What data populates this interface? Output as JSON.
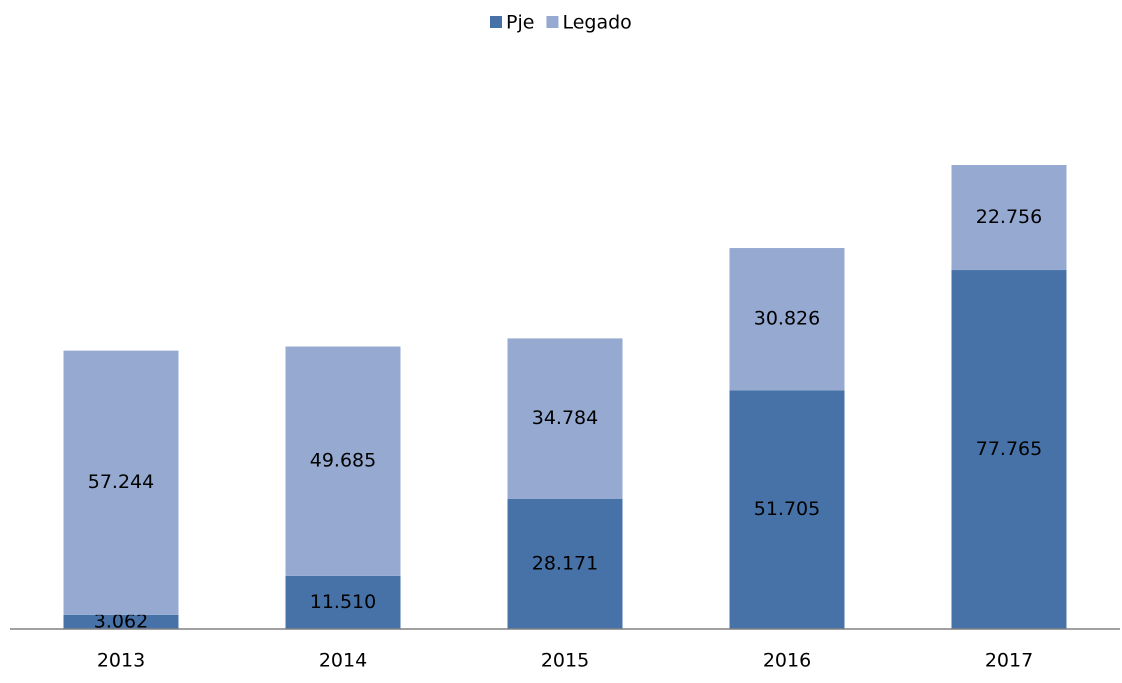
{
  "chart_data": {
    "type": "stacked_bar",
    "categories": [
      "2013",
      "2014",
      "2015",
      "2016",
      "2017"
    ],
    "series": [
      {
        "name": "Pje",
        "color": "#4672a8",
        "values": [
          3062,
          11510,
          28171,
          51705,
          77765
        ],
        "value_labels": [
          "3.062",
          "11.510",
          "28.171",
          "51.705",
          "77.765"
        ]
      },
      {
        "name": "Legado",
        "color": "#95a9d1",
        "values": [
          57244,
          49685,
          34784,
          30826,
          22756
        ],
        "value_labels": [
          "57.244",
          "49.685",
          "34.784",
          "30.826",
          "22.756"
        ]
      }
    ],
    "legend": "top"
  }
}
